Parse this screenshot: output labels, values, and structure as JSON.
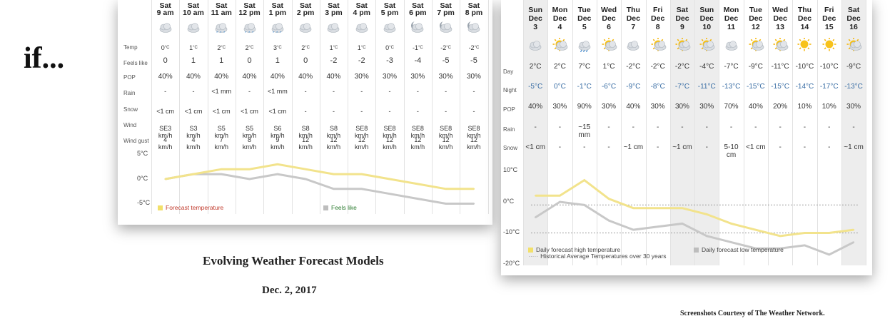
{
  "intro": "if...",
  "captions": {
    "title": "Evolving Weather Forecast Models",
    "date": "Dec. 2, 2017",
    "credit": "Screenshots Courtesy of The Weather Network."
  },
  "colors": {
    "temp_line": "#f2e38c",
    "feels_line": "#c8c8c8",
    "low_line": "#c8c8c8",
    "legend_red": "#c0392b",
    "legend_green": "#2e7d32",
    "night_blue": "#3a6ea5"
  },
  "hourly": {
    "row_labels": [
      "Temp",
      "Feels like",
      "POP",
      "Rain",
      "Snow",
      "Wind",
      "Wind gust"
    ],
    "columns": [
      {
        "day": "Sat",
        "time": "9 am",
        "icon": "cloud-icon",
        "temp": "0",
        "feels": "0",
        "pop": "40%",
        "rain": "-",
        "snow": "<1 cm",
        "wind": "SE3\nkm/h",
        "gust": "4\nkm/h"
      },
      {
        "day": "Sat",
        "time": "10 am",
        "icon": "cloud-icon",
        "temp": "1",
        "feels": "1",
        "pop": "40%",
        "rain": "-",
        "snow": "<1 cm",
        "wind": "S3\nkm/h",
        "gust": "4\nkm/h"
      },
      {
        "day": "Sat",
        "time": "11 am",
        "icon": "snow-cloud-icon",
        "temp": "2",
        "feels": "1",
        "pop": "40%",
        "rain": "<1 mm",
        "snow": "<1 cm",
        "wind": "S5\nkm/h",
        "gust": "7\nkm/h"
      },
      {
        "day": "Sat",
        "time": "12 pm",
        "icon": "snow-cloud-icon",
        "temp": "2",
        "feels": "0",
        "pop": "40%",
        "rain": "-",
        "snow": "<1 cm",
        "wind": "S5\nkm/h",
        "gust": "8\nkm/h"
      },
      {
        "day": "Sat",
        "time": "1 pm",
        "icon": "snow-cloud-icon",
        "temp": "3",
        "feels": "1",
        "pop": "40%",
        "rain": "<1 mm",
        "snow": "<1 cm",
        "wind": "S6\nkm/h",
        "gust": "9\nkm/h"
      },
      {
        "day": "Sat",
        "time": "2 pm",
        "icon": "cloud-icon",
        "temp": "2",
        "feels": "0",
        "pop": "40%",
        "rain": "-",
        "snow": "-",
        "wind": "S8\nkm/h",
        "gust": "12\nkm/h"
      },
      {
        "day": "Sat",
        "time": "3 pm",
        "icon": "cloud-icon",
        "temp": "1",
        "feels": "-2",
        "pop": "40%",
        "rain": "-",
        "snow": "-",
        "wind": "S8\nkm/h",
        "gust": "12\nkm/h"
      },
      {
        "day": "Sat",
        "time": "4 pm",
        "icon": "cloud-icon",
        "temp": "1",
        "feels": "-2",
        "pop": "30%",
        "rain": "-",
        "snow": "-",
        "wind": "SE8\nkm/h",
        "gust": "12\nkm/h"
      },
      {
        "day": "Sat",
        "time": "5 pm",
        "icon": "cloud-icon",
        "temp": "0",
        "feels": "-3",
        "pop": "30%",
        "rain": "-",
        "snow": "-",
        "wind": "SE8\nkm/h",
        "gust": "12\nkm/h"
      },
      {
        "day": "Sat",
        "time": "6 pm",
        "icon": "moon-cloud-icon",
        "temp": "-1",
        "feels": "-4",
        "pop": "30%",
        "rain": "-",
        "snow": "-",
        "wind": "SE8\nkm/h",
        "gust": "12\nkm/h"
      },
      {
        "day": "Sat",
        "time": "7 pm",
        "icon": "moon-cloud-icon",
        "temp": "-2",
        "feels": "-5",
        "pop": "30%",
        "rain": "-",
        "snow": "-",
        "wind": "SE8\nkm/h",
        "gust": "12\nkm/h"
      },
      {
        "day": "Sat",
        "time": "8 pm",
        "icon": "moon-cloud-icon",
        "temp": "-2",
        "feels": "-5",
        "pop": "30%",
        "rain": "-",
        "snow": "-",
        "wind": "SE8\nkm/h",
        "gust": "12\nkm/h"
      }
    ],
    "temp_unit": "°C",
    "y_ticks": [
      "5°C",
      "0°C",
      "-5°C"
    ],
    "legend": [
      "Forecast temperature",
      "Feels like"
    ]
  },
  "chart_data": [
    {
      "type": "line",
      "x": [
        "9 am",
        "10 am",
        "11 am",
        "12 pm",
        "1 pm",
        "2 pm",
        "3 pm",
        "4 pm",
        "5 pm",
        "6 pm",
        "7 pm",
        "8 pm"
      ],
      "series": [
        {
          "name": "Forecast temperature",
          "values": [
            0,
            1,
            2,
            2,
            3,
            2,
            1,
            1,
            0,
            -1,
            -2,
            -2
          ]
        },
        {
          "name": "Feels like",
          "values": [
            0,
            1,
            1,
            0,
            1,
            0,
            -2,
            -2,
            -3,
            -4,
            -5,
            -5
          ]
        }
      ],
      "ylim": [
        -5,
        5
      ],
      "yticks": [
        "5°C",
        "0°C",
        "-5°C"
      ],
      "legend": "bottom"
    },
    {
      "type": "line",
      "x": [
        "Sun Dec 3",
        "Mon Dec 4",
        "Tue Dec 5",
        "Wed Dec 6",
        "Thu Dec 7",
        "Fri Dec 8",
        "Sat Dec 9",
        "Sun Dec 10",
        "Mon Dec 11",
        "Tue Dec 12",
        "Wed Dec 13",
        "Thu Dec 14",
        "Fri Dec 15",
        "Sat Dec 16"
      ],
      "series": [
        {
          "name": "Daily forecast high temperature",
          "values": [
            2,
            2,
            7,
            1,
            -2,
            -2,
            -2,
            -4,
            -7,
            -9,
            -11,
            -10,
            -10,
            -9
          ]
        },
        {
          "name": "Daily forecast low temperature",
          "values": [
            -5,
            0,
            -1,
            -6,
            -9,
            -8,
            -7,
            -11,
            -13,
            -15,
            -15,
            -14,
            -17,
            -13
          ]
        },
        {
          "name": "Historical Average Temperatures over 30 years",
          "values": [
            -1,
            -1,
            -1,
            -1,
            -1,
            -1,
            -1,
            -1,
            -1,
            -1,
            -1,
            -1,
            -1,
            -1
          ],
          "lower": -10
        }
      ],
      "ylim": [
        -20,
        10
      ],
      "yticks": [
        "10°C",
        "0°C",
        "-10°C",
        "-20°C"
      ],
      "legend": "bottom"
    }
  ],
  "daily": {
    "row_labels": [
      "Day",
      "Night",
      "POP",
      "Rain",
      "Snow"
    ],
    "columns": [
      {
        "dow": "Sun",
        "mon": "Dec",
        "date": "3",
        "icon": "cloud-icon",
        "day": "2°C",
        "night": "-5°C",
        "pop": "40%",
        "rain": "-",
        "snow": "<1 cm",
        "shade": true
      },
      {
        "dow": "Mon",
        "mon": "Dec",
        "date": "4",
        "icon": "sun-cloud-icon",
        "day": "2°C",
        "night": "0°C",
        "pop": "30%",
        "rain": "-",
        "snow": "-",
        "shade": false
      },
      {
        "dow": "Tue",
        "mon": "Dec",
        "date": "5",
        "icon": "rain-cloud-icon",
        "day": "7°C",
        "night": "-1°C",
        "pop": "90%",
        "rain": "~15\nmm",
        "snow": "-",
        "shade": false
      },
      {
        "dow": "Wed",
        "mon": "Dec",
        "date": "6",
        "icon": "sun-cloud-icon",
        "day": "1°C",
        "night": "-6°C",
        "pop": "30%",
        "rain": "-",
        "snow": "-",
        "shade": false
      },
      {
        "dow": "Thu",
        "mon": "Dec",
        "date": "7",
        "icon": "cloud-icon",
        "day": "-2°C",
        "night": "-9°C",
        "pop": "40%",
        "rain": "-",
        "snow": "~1 cm",
        "shade": false
      },
      {
        "dow": "Fri",
        "mon": "Dec",
        "date": "8",
        "icon": "sun-cloud-icon",
        "day": "-2°C",
        "night": "-8°C",
        "pop": "30%",
        "rain": "-",
        "snow": "-",
        "shade": false
      },
      {
        "dow": "Sat",
        "mon": "Dec",
        "date": "9",
        "icon": "sun-cloud-icon",
        "day": "-2°C",
        "night": "-7°C",
        "pop": "30%",
        "rain": "-",
        "snow": "~1 cm",
        "shade": true
      },
      {
        "dow": "Sun",
        "mon": "Dec",
        "date": "10",
        "icon": "sun-cloud-icon",
        "day": "-4°C",
        "night": "-11°C",
        "pop": "30%",
        "rain": "-",
        "snow": "-",
        "shade": true
      },
      {
        "dow": "Mon",
        "mon": "Dec",
        "date": "11",
        "icon": "cloud-icon",
        "day": "-7°C",
        "night": "-13°C",
        "pop": "70%",
        "rain": "-",
        "snow": "5-10\ncm",
        "shade": false
      },
      {
        "dow": "Tue",
        "mon": "Dec",
        "date": "12",
        "icon": "sun-cloud-icon",
        "day": "-9°C",
        "night": "-15°C",
        "pop": "40%",
        "rain": "-",
        "snow": "<1 cm",
        "shade": false
      },
      {
        "dow": "Wed",
        "mon": "Dec",
        "date": "13",
        "icon": "sun-cloud-icon",
        "day": "-11°C",
        "night": "-15°C",
        "pop": "20%",
        "rain": "-",
        "snow": "-",
        "shade": false
      },
      {
        "dow": "Thu",
        "mon": "Dec",
        "date": "14",
        "icon": "sun-icon",
        "day": "-10°C",
        "night": "-14°C",
        "pop": "10%",
        "rain": "-",
        "snow": "-",
        "shade": false
      },
      {
        "dow": "Fri",
        "mon": "Dec",
        "date": "15",
        "icon": "sun-icon",
        "day": "-10°C",
        "night": "-17°C",
        "pop": "10%",
        "rain": "-",
        "snow": "-",
        "shade": false
      },
      {
        "dow": "Sat",
        "mon": "Dec",
        "date": "16",
        "icon": "sun-cloud-icon",
        "day": "-9°C",
        "night": "-13°C",
        "pop": "30%",
        "rain": "-",
        "snow": "~1 cm",
        "shade": true
      }
    ],
    "y_ticks": [
      "10°C",
      "0°C",
      "-10°C",
      "-20°C"
    ],
    "legend": [
      "Daily forecast high temperature",
      "Historical Average Temperatures over 30 years",
      "Daily forecast low temperature"
    ]
  }
}
